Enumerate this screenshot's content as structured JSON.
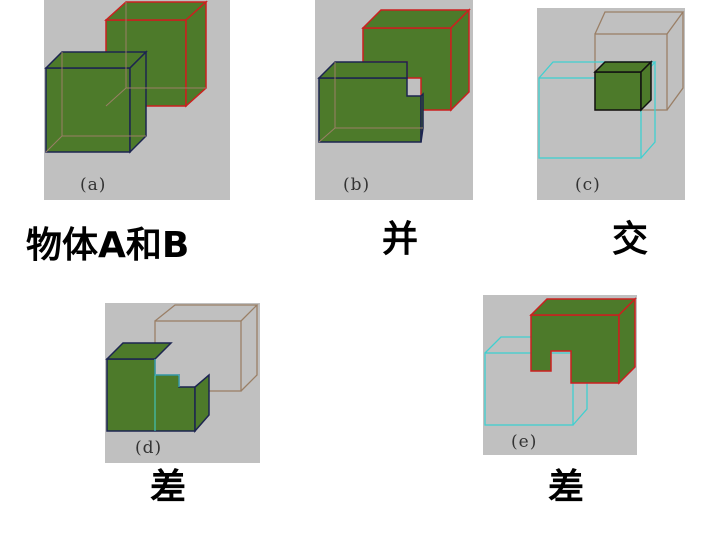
{
  "panels": {
    "a": {
      "sublabel": "(a)",
      "caption": "物体A和B"
    },
    "b": {
      "sublabel": "(b)",
      "caption": "并"
    },
    "c": {
      "sublabel": "(c)",
      "caption": "交"
    },
    "d": {
      "sublabel": "(d)",
      "caption": "差"
    },
    "e": {
      "sublabel": "(e)",
      "caption": "差"
    }
  },
  "colors": {
    "panel_bg": "#c0c0c0",
    "solid_fill": "#4d7a2a",
    "edge_red": "#cc1f1f",
    "edge_navy": "#1c2450",
    "edge_hidden_brown": "#9a7f66",
    "edge_cyan": "#3fd0d0"
  }
}
